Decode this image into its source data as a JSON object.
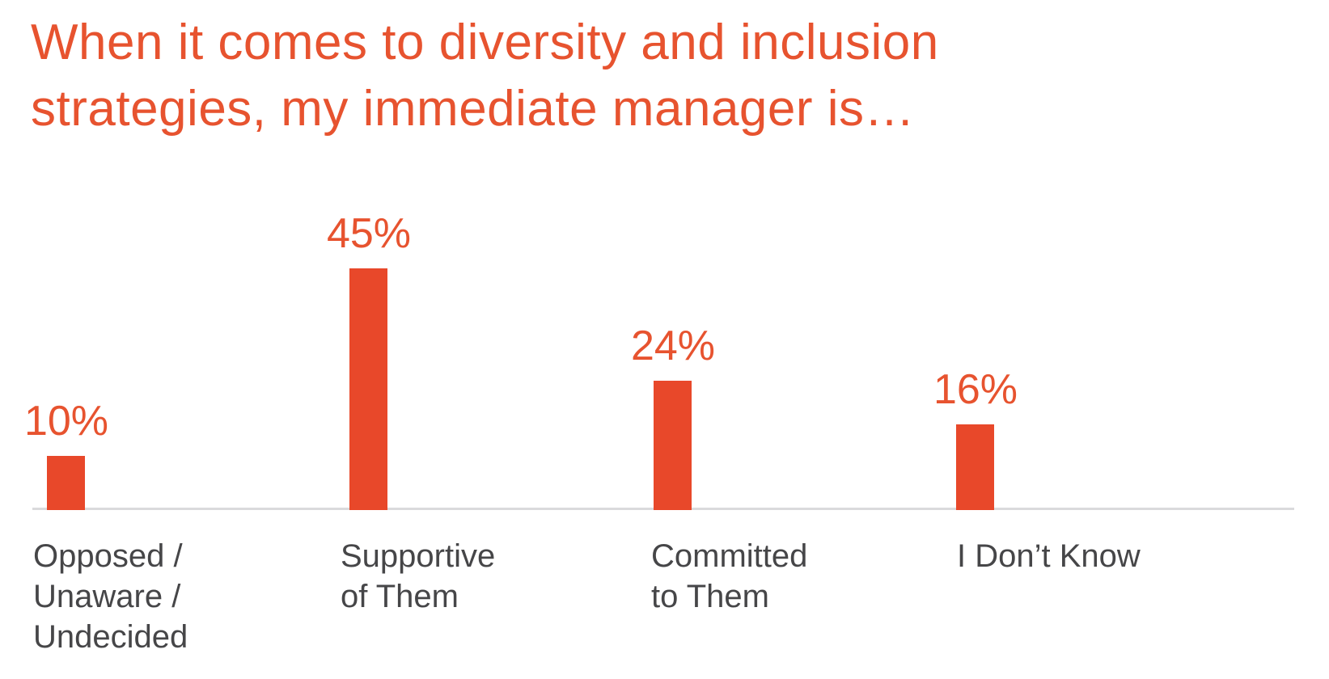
{
  "colors": {
    "accent_text": "#e7532f",
    "bar": "#e8482a",
    "category_label": "#464648",
    "axis_line": "#dadadc",
    "background": "#ffffff"
  },
  "title": {
    "full": "When it comes to diversity and inclusion strategies, my immediate manager is…",
    "lines": [
      "When it comes to diversity and inclusion",
      "strategies, my immediate manager is…"
    ]
  },
  "chart_data": {
    "type": "bar",
    "orientation": "vertical",
    "title": "When it comes to diversity and inclusion strategies, my immediate manager is…",
    "categories": [
      "Opposed / Unaware / Undecided",
      "Supportive of Them",
      "Committed to Them",
      "I Don’t Know"
    ],
    "category_label_lines": [
      [
        "Opposed /",
        "Unaware /",
        "Undecided"
      ],
      [
        "Supportive",
        "of Them"
      ],
      [
        "Committed",
        "to Them"
      ],
      [
        "I Don’t Know"
      ]
    ],
    "values": [
      10,
      45,
      24,
      16
    ],
    "unit": "%",
    "data_labels": [
      "10%",
      "45%",
      "24%",
      "16%"
    ],
    "xlabel": "",
    "ylabel": "",
    "ylim": [
      0,
      50
    ],
    "grid": false,
    "legend": false,
    "y_axis_ticks_visible": false
  }
}
